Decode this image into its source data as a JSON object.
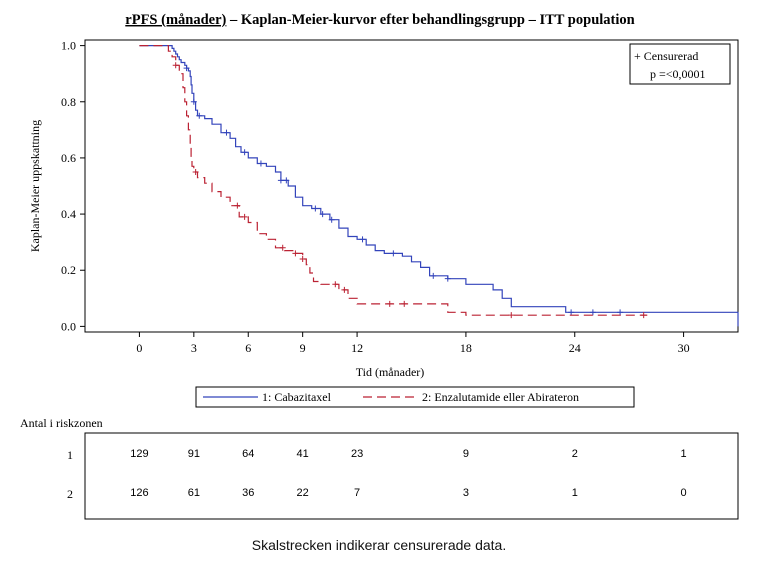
{
  "chart_data": {
    "type": "line",
    "title_part1": "rPFS (månader)",
    "title_part2": " – Kaplan-Meier-kurvor efter behandlingsgrupp – ITT population",
    "xlabel": "Tid (månader)",
    "ylabel": "Kaplan-Meier uppskattning",
    "xlim": [
      -3,
      33
    ],
    "ylim": [
      -0.02,
      1.02
    ],
    "x_ticks": [
      0,
      3,
      6,
      9,
      12,
      18,
      24,
      30
    ],
    "y_ticks": [
      0.0,
      0.2,
      0.4,
      0.6,
      0.8,
      1.0
    ],
    "x_tick_labels": [
      "0",
      "3",
      "6",
      "9",
      "12",
      "18",
      "24",
      "30"
    ],
    "y_tick_labels": [
      "0.0",
      "0.2",
      "0.4",
      "0.6",
      "0.8",
      "1.0"
    ],
    "inset_legend": {
      "censored_label": "+ Censurerad",
      "p_value": "p =<0,0001"
    },
    "series": [
      {
        "name": "1: Cabazitaxel",
        "color": "#3344bb",
        "dash": "solid",
        "steps": [
          [
            0,
            1.0
          ],
          [
            1.8,
            0.99
          ],
          [
            1.9,
            0.98
          ],
          [
            2.0,
            0.97
          ],
          [
            2.1,
            0.96
          ],
          [
            2.2,
            0.95
          ],
          [
            2.3,
            0.94
          ],
          [
            2.5,
            0.93
          ],
          [
            2.6,
            0.92
          ],
          [
            2.7,
            0.91
          ],
          [
            2.8,
            0.89
          ],
          [
            2.85,
            0.86
          ],
          [
            2.9,
            0.83
          ],
          [
            3.0,
            0.8
          ],
          [
            3.1,
            0.77
          ],
          [
            3.2,
            0.75
          ],
          [
            3.6,
            0.74
          ],
          [
            4.0,
            0.72
          ],
          [
            4.5,
            0.69
          ],
          [
            5.0,
            0.67
          ],
          [
            5.3,
            0.64
          ],
          [
            5.6,
            0.62
          ],
          [
            6.0,
            0.6
          ],
          [
            6.5,
            0.58
          ],
          [
            7.0,
            0.57
          ],
          [
            7.5,
            0.55
          ],
          [
            7.8,
            0.52
          ],
          [
            8.2,
            0.5
          ],
          [
            8.6,
            0.46
          ],
          [
            9.0,
            0.43
          ],
          [
            9.5,
            0.42
          ],
          [
            10.0,
            0.4
          ],
          [
            10.5,
            0.38
          ],
          [
            11.0,
            0.35
          ],
          [
            11.5,
            0.32
          ],
          [
            12.0,
            0.31
          ],
          [
            12.5,
            0.29
          ],
          [
            13.0,
            0.27
          ],
          [
            13.5,
            0.26
          ],
          [
            14.5,
            0.25
          ],
          [
            15.0,
            0.23
          ],
          [
            15.5,
            0.21
          ],
          [
            16.0,
            0.18
          ],
          [
            17.0,
            0.17
          ],
          [
            18.0,
            0.15
          ],
          [
            19.5,
            0.13
          ],
          [
            20.0,
            0.1
          ],
          [
            20.5,
            0.07
          ],
          [
            23.5,
            0.05
          ],
          [
            33.0,
            0.05
          ],
          [
            33.0,
            0.0
          ]
        ],
        "censor_times": [
          2.6,
          3.0,
          3.3,
          4.8,
          5.8,
          6.7,
          7.8,
          8.1,
          9.7,
          10.1,
          10.6,
          12.3,
          14.0,
          16.2,
          17.0,
          23.8,
          25.0,
          26.5
        ]
      },
      {
        "name": "2: Enzalutamide eller Abirateron",
        "color": "#bb2233",
        "dash": "dashed",
        "steps": [
          [
            0,
            1.0
          ],
          [
            1.6,
            0.98
          ],
          [
            1.8,
            0.96
          ],
          [
            2.0,
            0.93
          ],
          [
            2.2,
            0.9
          ],
          [
            2.4,
            0.85
          ],
          [
            2.5,
            0.8
          ],
          [
            2.6,
            0.75
          ],
          [
            2.7,
            0.7
          ],
          [
            2.8,
            0.64
          ],
          [
            2.85,
            0.6
          ],
          [
            2.9,
            0.57
          ],
          [
            3.0,
            0.55
          ],
          [
            3.2,
            0.53
          ],
          [
            3.6,
            0.51
          ],
          [
            4.0,
            0.48
          ],
          [
            4.5,
            0.46
          ],
          [
            5.0,
            0.43
          ],
          [
            5.5,
            0.39
          ],
          [
            6.0,
            0.37
          ],
          [
            6.5,
            0.33
          ],
          [
            7.0,
            0.31
          ],
          [
            7.5,
            0.28
          ],
          [
            8.0,
            0.27
          ],
          [
            8.5,
            0.26
          ],
          [
            9.0,
            0.24
          ],
          [
            9.2,
            0.22
          ],
          [
            9.4,
            0.19
          ],
          [
            9.6,
            0.16
          ],
          [
            10.0,
            0.15
          ],
          [
            11.0,
            0.13
          ],
          [
            11.5,
            0.1
          ],
          [
            12.0,
            0.08
          ],
          [
            17.0,
            0.05
          ],
          [
            18.0,
            0.04
          ],
          [
            28.0,
            0.04
          ]
        ],
        "censor_times": [
          2.0,
          3.1,
          5.4,
          5.8,
          7.9,
          8.6,
          9.0,
          10.8,
          11.3,
          13.8,
          14.6,
          20.5,
          27.8
        ]
      }
    ]
  },
  "risk_table": {
    "title": "Antal i riskzonen",
    "rows": [
      {
        "label": "1",
        "values": [
          "129",
          "91",
          "64",
          "41",
          "23",
          "9",
          "2",
          "1"
        ]
      },
      {
        "label": "2",
        "values": [
          "126",
          "61",
          "36",
          "22",
          "7",
          "3",
          "1",
          "0"
        ]
      }
    ],
    "times": [
      0,
      3,
      6,
      9,
      12,
      18,
      24,
      30
    ]
  },
  "caption": "Skalstrecken indikerar censurerade data."
}
